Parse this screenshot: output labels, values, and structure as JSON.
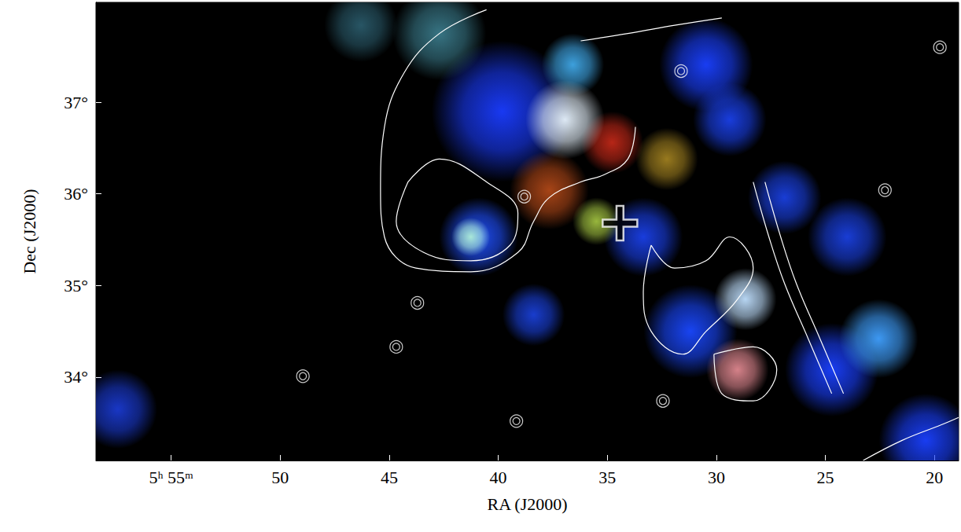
{
  "chart_data": {
    "type": "image",
    "xlabel": "RA (J2000)",
    "ylabel": "Dec (J2000)",
    "xlim": [
      58.45,
      18.89
    ],
    "ylim": [
      33.09,
      38.09
    ],
    "xticks": [
      {
        "value": 55,
        "label": "5ʰ 55ᵐ"
      },
      50,
      45,
      40,
      35,
      30,
      25,
      20
    ],
    "yticks": [
      {
        "value": 34,
        "label": "34°"
      },
      {
        "value": 35,
        "label": "35°"
      },
      {
        "value": 36,
        "label": "36°"
      },
      {
        "value": 37,
        "label": "37°"
      }
    ],
    "grid": false,
    "emission": [
      {
        "x": 39.82,
        "y": 36.9,
        "r": 0.77,
        "color": "#1a3cff"
      },
      {
        "x": 46.3,
        "y": 37.84,
        "r": 0.4,
        "color": "#2a5a6a"
      },
      {
        "x": 42.7,
        "y": 37.75,
        "r": 0.51,
        "color": "#3a7a8a"
      },
      {
        "x": 30.47,
        "y": 37.41,
        "r": 0.51,
        "color": "#1a40ff"
      },
      {
        "x": 29.39,
        "y": 36.81,
        "r": 0.4,
        "color": "#1a40e8"
      },
      {
        "x": 26.87,
        "y": 35.96,
        "r": 0.4,
        "color": "#1a40e0"
      },
      {
        "x": 40.9,
        "y": 35.53,
        "r": 0.43,
        "color": "#2050ff"
      },
      {
        "x": 33.35,
        "y": 35.53,
        "r": 0.43,
        "color": "#1a40e8"
      },
      {
        "x": 31.19,
        "y": 34.5,
        "r": 0.51,
        "color": "#1a48ff"
      },
      {
        "x": 24.71,
        "y": 34.08,
        "r": 0.51,
        "color": "#1a40ff"
      },
      {
        "x": 22.56,
        "y": 34.42,
        "r": 0.43,
        "color": "#40a0ff"
      },
      {
        "x": 20.4,
        "y": 33.31,
        "r": 0.51,
        "color": "#1a40ff"
      },
      {
        "x": 24.0,
        "y": 35.53,
        "r": 0.43,
        "color": "#1a40e0"
      },
      {
        "x": 57.45,
        "y": 33.65,
        "r": 0.43,
        "color": "#1a3ad0"
      },
      {
        "x": 38.38,
        "y": 34.68,
        "r": 0.34,
        "color": "#1a40d8"
      },
      {
        "x": 36.58,
        "y": 37.41,
        "r": 0.34,
        "color": "#40a8e8"
      },
      {
        "x": 37.66,
        "y": 36.04,
        "r": 0.43,
        "color": "#b04818"
      },
      {
        "x": 34.78,
        "y": 36.56,
        "r": 0.34,
        "color": "#c02818"
      },
      {
        "x": 32.27,
        "y": 36.38,
        "r": 0.34,
        "color": "#a08020"
      },
      {
        "x": 35.5,
        "y": 35.7,
        "r": 0.26,
        "color": "#a0c040"
      },
      {
        "x": 36.94,
        "y": 36.81,
        "r": 0.43,
        "color": "#e8f4ff"
      },
      {
        "x": 41.26,
        "y": 35.53,
        "r": 0.21,
        "color": "#b0f0d8"
      },
      {
        "x": 28.67,
        "y": 34.85,
        "r": 0.34,
        "color": "#c0e0ff"
      },
      {
        "x": 29.03,
        "y": 34.08,
        "r": 0.34,
        "color": "#e08890"
      }
    ],
    "contours": {
      "color": "#ffffff",
      "lines": [
        [
          [
            44.14,
            36.13
          ],
          [
            42.7,
            36.38
          ],
          [
            40.54,
            36.13
          ],
          [
            39.1,
            35.79
          ],
          [
            39.46,
            35.44
          ],
          [
            41.26,
            35.27
          ],
          [
            43.42,
            35.36
          ],
          [
            44.68,
            35.7
          ],
          [
            44.14,
            36.13
          ]
        ],
        [
          [
            40.54,
            38.01
          ],
          [
            42.7,
            37.75
          ],
          [
            44.32,
            37.32
          ],
          [
            45.22,
            36.73
          ],
          [
            45.4,
            36.04
          ],
          [
            45.22,
            35.53
          ],
          [
            43.78,
            35.19
          ],
          [
            41.26,
            35.15
          ],
          [
            39.1,
            35.36
          ],
          [
            38.38,
            35.7
          ],
          [
            37.66,
            35.96
          ],
          [
            36.22,
            36.13
          ],
          [
            35.14,
            36.21
          ],
          [
            34.06,
            36.38
          ],
          [
            33.71,
            36.73
          ]
        ],
        [
          [
            36.22,
            37.67
          ],
          [
            34.06,
            37.75
          ],
          [
            31.91,
            37.84
          ],
          [
            29.75,
            37.92
          ]
        ],
        [
          [
            28.31,
            36.13
          ],
          [
            27.59,
            35.53
          ],
          [
            26.87,
            35.02
          ],
          [
            25.79,
            34.42
          ],
          [
            24.71,
            33.82
          ]
        ],
        [
          [
            27.77,
            36.13
          ],
          [
            27.05,
            35.53
          ],
          [
            26.33,
            35.02
          ],
          [
            25.25,
            34.42
          ],
          [
            24.17,
            33.82
          ]
        ],
        [
          [
            32.99,
            35.44
          ],
          [
            31.91,
            35.19
          ],
          [
            30.47,
            35.27
          ],
          [
            29.39,
            35.53
          ],
          [
            28.31,
            35.19
          ],
          [
            29.03,
            34.85
          ],
          [
            30.47,
            34.5
          ],
          [
            31.55,
            34.25
          ],
          [
            32.99,
            34.5
          ],
          [
            33.35,
            34.93
          ],
          [
            32.99,
            35.44
          ]
        ],
        [
          [
            23.27,
            33.09
          ],
          [
            21.48,
            33.31
          ],
          [
            19.68,
            33.48
          ],
          [
            18.89,
            33.56
          ]
        ],
        [
          [
            30.11,
            34.25
          ],
          [
            28.31,
            34.33
          ],
          [
            27.23,
            34.08
          ],
          [
            28.31,
            33.74
          ],
          [
            29.75,
            33.82
          ],
          [
            30.11,
            34.25
          ]
        ]
      ]
    },
    "point_sources": {
      "color": "#ffffff",
      "marker": "circle",
      "points": [
        [
          31.62,
          37.34
        ],
        [
          38.81,
          35.97
        ],
        [
          43.71,
          34.81
        ],
        [
          44.68,
          34.33
        ],
        [
          39.17,
          33.52
        ],
        [
          32.45,
          33.74
        ],
        [
          22.27,
          36.04
        ],
        [
          19.75,
          37.6
        ],
        [
          48.96,
          34.01
        ]
      ]
    },
    "markers": [
      {
        "x": 34.42,
        "y": 35.68,
        "marker": "cross",
        "color": "#000000"
      }
    ]
  }
}
